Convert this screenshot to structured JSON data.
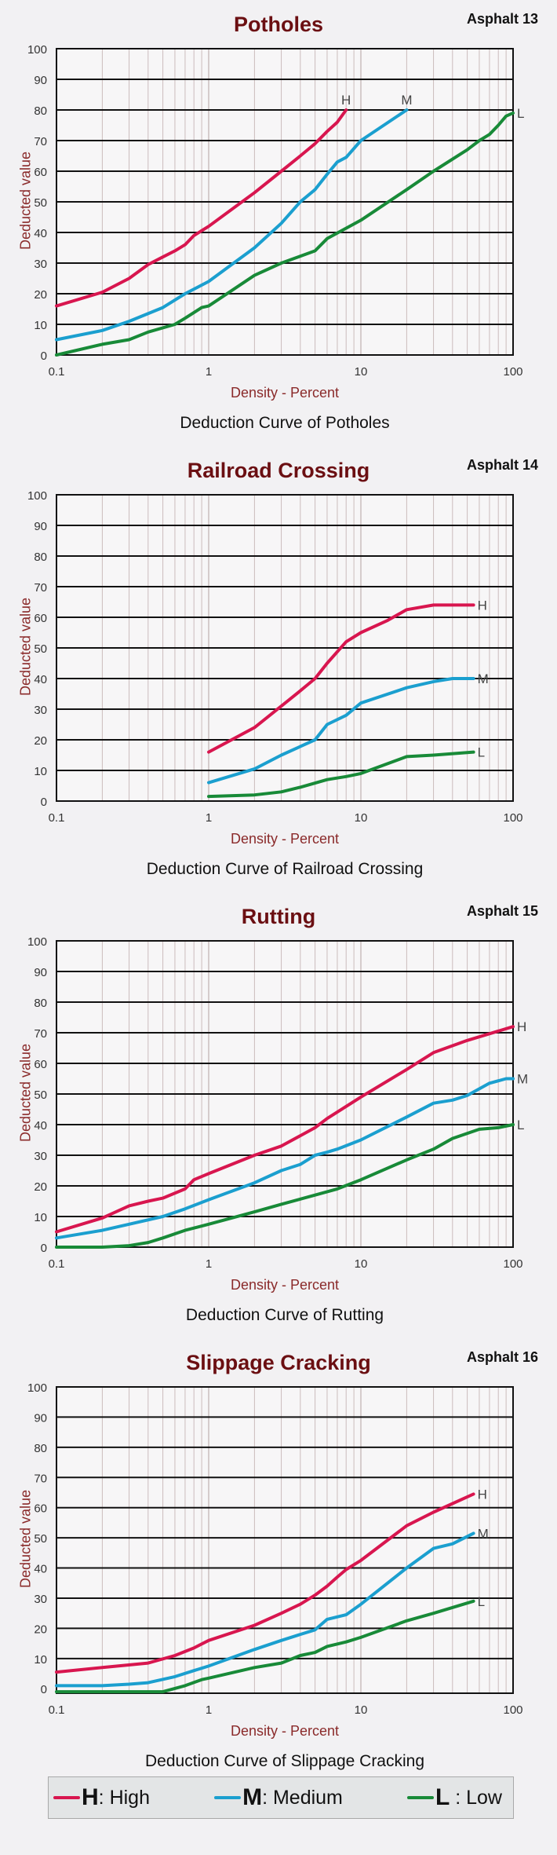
{
  "colors": {
    "H": "#d8164f",
    "M": "#1b9fcf",
    "L": "#188a38",
    "title": "#6b0f12",
    "axis_label": "#8a2a2a"
  },
  "legend": [
    {
      "key": "H",
      "sep": ": ",
      "label": "High"
    },
    {
      "key": "M",
      "sep": ": ",
      "label": "Medium"
    },
    {
      "key": "L",
      "sep": " : ",
      "label": "Low"
    }
  ],
  "chart_data": [
    {
      "type": "line",
      "code": "Asphalt 13",
      "title": "Potholes",
      "xlabel": "Density - Percent",
      "ylabel": "Deducted value",
      "caption": "Deduction Curve of Potholes",
      "xscale": "log",
      "xlim": [
        0.1,
        100
      ],
      "ylim": [
        0,
        100
      ],
      "xticks": [
        "0.1",
        "1",
        "10",
        "100"
      ],
      "yticks": [
        "0",
        "10",
        "20",
        "30",
        "40",
        "50",
        "60",
        "70",
        "80",
        "90",
        "100"
      ],
      "grid": true,
      "series": [
        {
          "name": "H",
          "end_label_side": "above",
          "x": [
            0.1,
            0.2,
            0.3,
            0.4,
            0.5,
            0.6,
            0.7,
            0.8,
            1,
            2,
            3,
            4,
            5,
            6,
            7,
            8
          ],
          "y": [
            16,
            20.5,
            25,
            29.5,
            32,
            34,
            36,
            39,
            42,
            53,
            60,
            65,
            69,
            73,
            76,
            80
          ]
        },
        {
          "name": "M",
          "end_label_side": "above",
          "x": [
            0.1,
            0.2,
            0.3,
            0.5,
            0.7,
            1,
            2,
            3,
            4,
            5,
            6,
            7,
            8,
            10,
            20
          ],
          "y": [
            5,
            8,
            11,
            15.5,
            20,
            24,
            35,
            43,
            50,
            54,
            59,
            63,
            64.5,
            70,
            80
          ]
        },
        {
          "name": "L",
          "end_label_side": "right",
          "x": [
            0.1,
            0.2,
            0.3,
            0.4,
            0.6,
            0.7,
            0.9,
            1,
            2,
            3,
            5,
            6,
            10,
            20,
            30,
            50,
            60,
            70,
            80,
            90,
            100
          ],
          "y": [
            0,
            3.5,
            5,
            7.5,
            10,
            12,
            15.5,
            16,
            26,
            30,
            34,
            38,
            44,
            54,
            60,
            67,
            70,
            72,
            75,
            78,
            79
          ]
        }
      ]
    },
    {
      "type": "line",
      "code": "Asphalt 14",
      "title": "Railroad Crossing",
      "xlabel": "Density - Percent",
      "ylabel": "Deducted value",
      "caption": "Deduction Curve of Railroad Crossing",
      "xscale": "log",
      "xlim": [
        0.1,
        100
      ],
      "ylim": [
        0,
        100
      ],
      "xticks": [
        "0.1",
        "1",
        "10",
        "100"
      ],
      "yticks": [
        "0",
        "10",
        "20",
        "30",
        "40",
        "50",
        "60",
        "70",
        "80",
        "90",
        "100"
      ],
      "grid": true,
      "series": [
        {
          "name": "H",
          "end_label_side": "right",
          "x": [
            1,
            2,
            3,
            4,
            5,
            6,
            8,
            10,
            15,
            20,
            30,
            55
          ],
          "y": [
            16,
            24,
            31,
            36,
            40,
            45,
            52,
            55,
            59,
            62.5,
            64,
            64
          ]
        },
        {
          "name": "M",
          "end_label_side": "right",
          "x": [
            1,
            2,
            3,
            5,
            6,
            8,
            10,
            20,
            30,
            40,
            55
          ],
          "y": [
            6,
            10.5,
            15,
            20,
            25,
            28,
            32,
            37,
            39,
            40,
            40
          ]
        },
        {
          "name": "L",
          "end_label_side": "right",
          "x": [
            1,
            2,
            3,
            4,
            6,
            8,
            10,
            20,
            30,
            55
          ],
          "y": [
            1.5,
            2,
            3,
            4.5,
            7,
            8,
            9,
            14.5,
            15,
            16
          ]
        }
      ]
    },
    {
      "type": "line",
      "code": "Asphalt 15",
      "title": "Rutting",
      "xlabel": "Density - Percent",
      "ylabel": "Deducted value",
      "caption": "Deduction Curve of Rutting",
      "xscale": "log",
      "xlim": [
        0.1,
        100
      ],
      "ylim": [
        0,
        100
      ],
      "xticks": [
        "0.1",
        "1",
        "10",
        "100"
      ],
      "yticks": [
        "0",
        "10",
        "20",
        "30",
        "40",
        "50",
        "60",
        "70",
        "80",
        "90",
        "100"
      ],
      "grid": true,
      "series": [
        {
          "name": "H",
          "end_label_side": "right",
          "x": [
            0.1,
            0.2,
            0.3,
            0.4,
            0.5,
            0.7,
            0.8,
            1,
            2,
            3,
            5,
            6,
            10,
            20,
            30,
            50,
            100
          ],
          "y": [
            5,
            9.5,
            13.5,
            15,
            16,
            19,
            22,
            24,
            30,
            33,
            39,
            42,
            49,
            58,
            63.5,
            67.5,
            72
          ]
        },
        {
          "name": "M",
          "end_label_side": "right",
          "x": [
            0.1,
            0.2,
            0.3,
            0.5,
            0.7,
            1,
            2,
            3,
            4,
            5,
            6,
            7,
            10,
            20,
            30,
            40,
            50,
            70,
            90,
            100
          ],
          "y": [
            3,
            5.5,
            7.5,
            10,
            12.5,
            15.5,
            21,
            25,
            27,
            30,
            31,
            32,
            35,
            42.5,
            47,
            48,
            49.5,
            53.5,
            55,
            55
          ]
        },
        {
          "name": "L",
          "end_label_side": "right",
          "x": [
            0.1,
            0.2,
            0.3,
            0.4,
            0.5,
            0.7,
            1,
            2,
            3,
            5,
            7,
            10,
            20,
            30,
            40,
            60,
            80,
            100
          ],
          "y": [
            0,
            0,
            0.5,
            1.5,
            3,
            5.5,
            7.5,
            11.5,
            14,
            17,
            19,
            22,
            28.5,
            32,
            35.5,
            38.5,
            39,
            40
          ]
        }
      ]
    },
    {
      "type": "line",
      "code": "Asphalt 16",
      "title": "Slippage Cracking",
      "xlabel": "Density - Percent",
      "ylabel": "Deducted value",
      "caption": "Deduction Curve of Slippage Cracking",
      "xscale": "log",
      "xlim": [
        0.1,
        100
      ],
      "ylim": [
        -1.5,
        100
      ],
      "xticks": [
        "0.1",
        "1",
        "10",
        "100"
      ],
      "yticks": [
        "0",
        "10",
        "20",
        "30",
        "40",
        "50",
        "60",
        "70",
        "80",
        "90",
        "100"
      ],
      "grid": true,
      "series": [
        {
          "name": "H",
          "end_label_side": "right",
          "x": [
            0.1,
            0.2,
            0.4,
            0.6,
            0.8,
            1,
            2,
            3,
            4,
            5,
            6,
            7,
            8,
            10,
            20,
            30,
            55
          ],
          "y": [
            5.5,
            7,
            8.5,
            11,
            13.5,
            16,
            21,
            25,
            28,
            31,
            34,
            37,
            39.5,
            42.5,
            54,
            58.5,
            64.5
          ]
        },
        {
          "name": "M",
          "end_label_side": "right",
          "x": [
            0.1,
            0.2,
            0.3,
            0.4,
            0.6,
            0.8,
            1,
            2,
            3,
            4,
            5,
            6,
            8,
            10,
            20,
            30,
            40,
            55
          ],
          "y": [
            1,
            1,
            1.5,
            2,
            4,
            6,
            7.5,
            13,
            16,
            18,
            19.5,
            23,
            24.5,
            28,
            40,
            46.5,
            48,
            51.5
          ]
        },
        {
          "name": "L",
          "end_label_side": "right",
          "x": [
            0.1,
            0.4,
            0.5,
            0.7,
            0.9,
            1,
            2,
            3,
            4,
            5,
            6,
            8,
            10,
            20,
            30,
            55
          ],
          "y": [
            -1,
            -1,
            -1,
            1,
            3,
            3.5,
            7,
            8.5,
            11,
            12,
            14,
            15.5,
            17,
            22.5,
            25,
            29
          ]
        }
      ]
    }
  ]
}
